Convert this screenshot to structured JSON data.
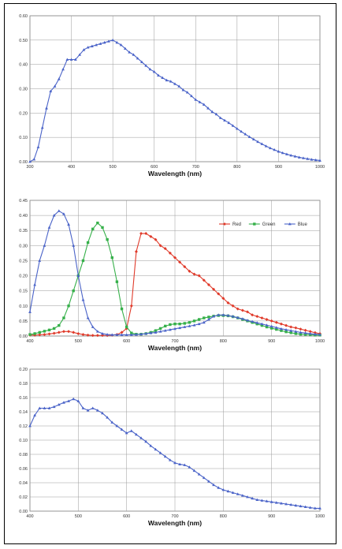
{
  "chart_data": [
    {
      "type": "line",
      "xlabel": "Wavelength (nm)",
      "ylabel": "",
      "xlim": [
        300,
        1000
      ],
      "ylim": [
        0.0,
        0.6
      ],
      "xticks": [
        300,
        400,
        500,
        600,
        700,
        800,
        900,
        1000
      ],
      "yticks": [
        0.0,
        0.1,
        0.2,
        0.3,
        0.4,
        0.5,
        0.6
      ],
      "ytick_labels": [
        "0.00",
        "0.10",
        "0.20",
        "0.30",
        "0.40",
        "0.50",
        "0.60"
      ],
      "grid": true,
      "series": [
        {
          "color": "#4a63c8",
          "marker": "triangle",
          "x": [
            300,
            310,
            320,
            330,
            340,
            350,
            360,
            370,
            380,
            390,
            400,
            410,
            420,
            430,
            440,
            450,
            460,
            470,
            480,
            490,
            500,
            510,
            520,
            530,
            540,
            550,
            560,
            570,
            580,
            590,
            600,
            610,
            620,
            630,
            640,
            650,
            660,
            670,
            680,
            690,
            700,
            710,
            720,
            730,
            740,
            750,
            760,
            770,
            780,
            790,
            800,
            810,
            820,
            830,
            840,
            850,
            860,
            870,
            880,
            890,
            900,
            910,
            920,
            930,
            940,
            950,
            960,
            970,
            980,
            990,
            1000
          ],
          "values": [
            0.0,
            0.01,
            0.06,
            0.14,
            0.22,
            0.29,
            0.31,
            0.34,
            0.38,
            0.42,
            0.42,
            0.42,
            0.44,
            0.46,
            0.47,
            0.475,
            0.48,
            0.485,
            0.49,
            0.495,
            0.5,
            0.49,
            0.48,
            0.465,
            0.45,
            0.44,
            0.425,
            0.41,
            0.395,
            0.38,
            0.37,
            0.355,
            0.345,
            0.335,
            0.33,
            0.32,
            0.31,
            0.295,
            0.285,
            0.27,
            0.255,
            0.245,
            0.235,
            0.22,
            0.205,
            0.195,
            0.18,
            0.17,
            0.16,
            0.148,
            0.136,
            0.124,
            0.113,
            0.102,
            0.092,
            0.082,
            0.073,
            0.064,
            0.056,
            0.049,
            0.042,
            0.036,
            0.031,
            0.026,
            0.022,
            0.018,
            0.015,
            0.012,
            0.009,
            0.007,
            0.005
          ]
        }
      ]
    },
    {
      "type": "line",
      "xlabel": "Wavelength (nm)",
      "ylabel": "",
      "xlim": [
        400,
        1000
      ],
      "ylim": [
        0.0,
        0.45
      ],
      "xticks": [
        400,
        500,
        600,
        700,
        800,
        900,
        1000
      ],
      "yticks": [
        0.0,
        0.05,
        0.1,
        0.15,
        0.2,
        0.25,
        0.3,
        0.35,
        0.4,
        0.45
      ],
      "ytick_labels": [
        "0.00",
        "0.05",
        "0.10",
        "0.15",
        "0.20",
        "0.25",
        "0.30",
        "0.35",
        "0.40",
        "0.45"
      ],
      "grid": true,
      "legend": "top-right",
      "series": [
        {
          "name": "Red",
          "color": "#e03a2a",
          "marker": "diamond",
          "x": [
            400,
            410,
            420,
            430,
            440,
            450,
            460,
            470,
            480,
            490,
            500,
            510,
            520,
            530,
            540,
            550,
            560,
            570,
            580,
            590,
            600,
            610,
            620,
            630,
            640,
            650,
            660,
            670,
            680,
            690,
            700,
            710,
            720,
            730,
            740,
            750,
            760,
            770,
            780,
            790,
            800,
            810,
            820,
            830,
            840,
            850,
            860,
            870,
            880,
            890,
            900,
            910,
            920,
            930,
            940,
            950,
            960,
            970,
            980,
            990,
            1000
          ],
          "values": [
            0.003,
            0.003,
            0.004,
            0.005,
            0.007,
            0.009,
            0.012,
            0.015,
            0.015,
            0.012,
            0.008,
            0.005,
            0.003,
            0.002,
            0.002,
            0.002,
            0.002,
            0.003,
            0.005,
            0.012,
            0.025,
            0.1,
            0.28,
            0.34,
            0.34,
            0.33,
            0.32,
            0.3,
            0.29,
            0.275,
            0.26,
            0.245,
            0.23,
            0.215,
            0.205,
            0.2,
            0.185,
            0.17,
            0.155,
            0.14,
            0.125,
            0.11,
            0.1,
            0.09,
            0.085,
            0.08,
            0.07,
            0.065,
            0.06,
            0.055,
            0.05,
            0.045,
            0.04,
            0.035,
            0.03,
            0.027,
            0.023,
            0.019,
            0.015,
            0.011,
            0.008
          ]
        },
        {
          "name": "Green",
          "color": "#36b04a",
          "marker": "square",
          "x": [
            400,
            410,
            420,
            430,
            440,
            450,
            460,
            470,
            480,
            490,
            500,
            510,
            520,
            530,
            540,
            550,
            560,
            570,
            580,
            590,
            600,
            610,
            620,
            630,
            640,
            650,
            660,
            670,
            680,
            690,
            700,
            710,
            720,
            730,
            740,
            750,
            760,
            770,
            780,
            790,
            800,
            810,
            820,
            830,
            840,
            850,
            860,
            870,
            880,
            890,
            900,
            910,
            920,
            930,
            940,
            950,
            960,
            970,
            980,
            990,
            1000
          ],
          "values": [
            0.005,
            0.008,
            0.012,
            0.016,
            0.02,
            0.025,
            0.035,
            0.06,
            0.1,
            0.15,
            0.2,
            0.25,
            0.31,
            0.355,
            0.375,
            0.36,
            0.32,
            0.26,
            0.18,
            0.09,
            0.03,
            0.01,
            0.006,
            0.006,
            0.008,
            0.012,
            0.018,
            0.025,
            0.033,
            0.038,
            0.04,
            0.04,
            0.042,
            0.045,
            0.05,
            0.055,
            0.06,
            0.063,
            0.066,
            0.068,
            0.068,
            0.067,
            0.064,
            0.06,
            0.055,
            0.05,
            0.045,
            0.04,
            0.035,
            0.03,
            0.026,
            0.022,
            0.018,
            0.014,
            0.011,
            0.008,
            0.006,
            0.005,
            0.004,
            0.003,
            0.003
          ]
        },
        {
          "name": "Blue",
          "color": "#4a63c8",
          "marker": "triangle",
          "x": [
            400,
            410,
            420,
            430,
            440,
            450,
            460,
            470,
            480,
            490,
            500,
            510,
            520,
            530,
            540,
            550,
            560,
            570,
            580,
            590,
            600,
            610,
            620,
            630,
            640,
            650,
            660,
            670,
            680,
            690,
            700,
            710,
            720,
            730,
            740,
            750,
            760,
            770,
            780,
            790,
            800,
            810,
            820,
            830,
            840,
            850,
            860,
            870,
            880,
            890,
            900,
            910,
            920,
            930,
            940,
            950,
            960,
            970,
            980,
            990,
            1000
          ],
          "values": [
            0.08,
            0.17,
            0.25,
            0.3,
            0.36,
            0.4,
            0.415,
            0.405,
            0.37,
            0.3,
            0.2,
            0.12,
            0.06,
            0.03,
            0.015,
            0.008,
            0.005,
            0.004,
            0.004,
            0.004,
            0.004,
            0.004,
            0.005,
            0.006,
            0.008,
            0.01,
            0.012,
            0.015,
            0.018,
            0.021,
            0.024,
            0.027,
            0.03,
            0.033,
            0.036,
            0.04,
            0.045,
            0.055,
            0.065,
            0.07,
            0.07,
            0.068,
            0.065,
            0.061,
            0.057,
            0.052,
            0.048,
            0.044,
            0.04,
            0.036,
            0.032,
            0.028,
            0.024,
            0.021,
            0.018,
            0.015,
            0.012,
            0.01,
            0.008,
            0.006,
            0.005
          ]
        }
      ]
    },
    {
      "type": "line",
      "xlabel": "Wavelength (nm)",
      "ylabel": "",
      "xlim": [
        400,
        1000
      ],
      "ylim": [
        0.0,
        0.2
      ],
      "xticks": [
        400,
        500,
        600,
        700,
        800,
        900,
        1000
      ],
      "yticks": [
        0.0,
        0.02,
        0.04,
        0.06,
        0.08,
        0.1,
        0.12,
        0.14,
        0.16,
        0.18,
        0.2
      ],
      "ytick_labels": [
        "0.00",
        "0.02",
        "0.04",
        "0.06",
        "0.08",
        "0.10",
        "0.12",
        "0.14",
        "0.16",
        "0.18",
        "0.20"
      ],
      "grid": true,
      "series": [
        {
          "color": "#4a63c8",
          "marker": "triangle",
          "x": [
            400,
            410,
            420,
            430,
            440,
            450,
            460,
            470,
            480,
            490,
            500,
            510,
            520,
            530,
            540,
            550,
            560,
            570,
            580,
            590,
            600,
            610,
            620,
            630,
            640,
            650,
            660,
            670,
            680,
            690,
            700,
            710,
            720,
            730,
            740,
            750,
            760,
            770,
            780,
            790,
            800,
            810,
            820,
            830,
            840,
            850,
            860,
            870,
            880,
            890,
            900,
            910,
            920,
            930,
            940,
            950,
            960,
            970,
            980,
            990,
            1000
          ],
          "values": [
            0.12,
            0.135,
            0.145,
            0.145,
            0.145,
            0.147,
            0.15,
            0.153,
            0.155,
            0.158,
            0.155,
            0.145,
            0.142,
            0.145,
            0.142,
            0.138,
            0.132,
            0.125,
            0.12,
            0.115,
            0.11,
            0.113,
            0.108,
            0.103,
            0.098,
            0.092,
            0.087,
            0.082,
            0.077,
            0.072,
            0.068,
            0.066,
            0.065,
            0.062,
            0.057,
            0.052,
            0.047,
            0.042,
            0.037,
            0.033,
            0.03,
            0.028,
            0.026,
            0.024,
            0.022,
            0.02,
            0.018,
            0.016,
            0.015,
            0.014,
            0.013,
            0.012,
            0.011,
            0.01,
            0.009,
            0.008,
            0.007,
            0.006,
            0.005,
            0.004,
            0.004
          ]
        }
      ]
    }
  ]
}
